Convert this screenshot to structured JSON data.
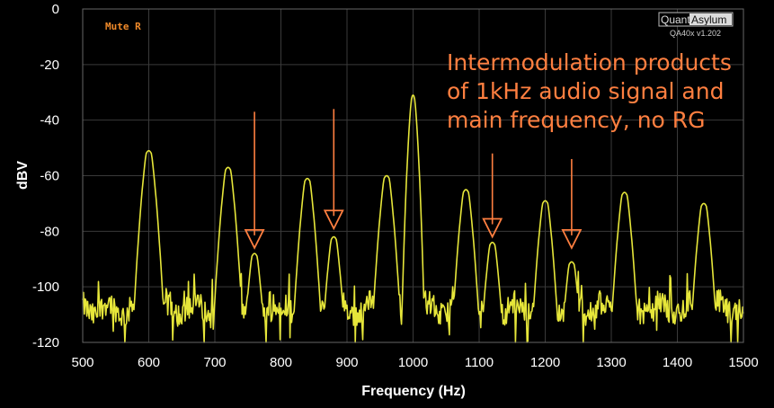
{
  "status_label": "Mute R",
  "logo": {
    "part1": "Quant",
    "part2": "Asylum",
    "version": "QA40x v1.202"
  },
  "colors": {
    "trace": "#e6e63a",
    "arrow": "#ff7f40",
    "annotation": "#ff7f40",
    "grid": "#3a3a3a",
    "plot_bg": "#000000"
  },
  "chart_data": {
    "type": "line",
    "xlabel": "Frequency (Hz)",
    "ylabel": "dBV",
    "xlim": [
      500,
      1500
    ],
    "ylim": [
      -120,
      0
    ],
    "xticks": [
      500,
      600,
      700,
      800,
      900,
      1000,
      1100,
      1200,
      1300,
      1400,
      1500
    ],
    "yticks": [
      0,
      -20,
      -40,
      -60,
      -80,
      -100,
      -120
    ],
    "grid": true,
    "annotation": {
      "lines": [
        "Intermodulation products",
        "of 1kHz audio signal and",
        "main frequency, no RG"
      ]
    },
    "arrows": [
      {
        "x": 760,
        "from_y": -37,
        "to_y": -86
      },
      {
        "x": 880,
        "from_y": -36,
        "to_y": -79
      },
      {
        "x": 1120,
        "from_y": -52,
        "to_y": -82
      },
      {
        "x": 1240,
        "from_y": -54,
        "to_y": -86
      }
    ],
    "series": [
      {
        "peaks": [
          {
            "x": 600,
            "y": -51
          },
          {
            "x": 720,
            "y": -57
          },
          {
            "x": 760,
            "y": -88
          },
          {
            "x": 840,
            "y": -61
          },
          {
            "x": 880,
            "y": -82
          },
          {
            "x": 960,
            "y": -60
          },
          {
            "x": 1000,
            "y": -31
          },
          {
            "x": 1080,
            "y": -65
          },
          {
            "x": 1120,
            "y": -84
          },
          {
            "x": 1200,
            "y": -69
          },
          {
            "x": 1240,
            "y": -91
          },
          {
            "x": 1320,
            "y": -66
          },
          {
            "x": 1440,
            "y": -70
          }
        ],
        "noise_floor": -108
      }
    ]
  }
}
